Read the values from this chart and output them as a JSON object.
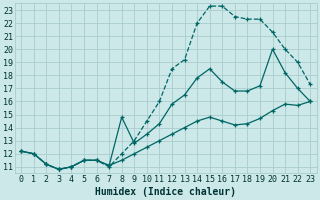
{
  "xlabel": "Humidex (Indice chaleur)",
  "bg_color": "#cce8e8",
  "grid_color": "#aacccc",
  "line_color": "#006666",
  "xlim": [
    -0.5,
    23.5
  ],
  "ylim": [
    10.5,
    23.5
  ],
  "xticks": [
    0,
    1,
    2,
    3,
    4,
    5,
    6,
    7,
    8,
    9,
    10,
    11,
    12,
    13,
    14,
    15,
    16,
    17,
    18,
    19,
    20,
    21,
    22,
    23
  ],
  "yticks": [
    11,
    12,
    13,
    14,
    15,
    16,
    17,
    18,
    19,
    20,
    21,
    22,
    23
  ],
  "line1_x": [
    0,
    1,
    2,
    3,
    4,
    5,
    6,
    7,
    8,
    9,
    10,
    11,
    12,
    13,
    14,
    15,
    16,
    17,
    18,
    19,
    20,
    21,
    22,
    23
  ],
  "line1_y": [
    12.2,
    12.0,
    11.2,
    10.8,
    11.0,
    11.5,
    11.5,
    11.0,
    12.0,
    13.0,
    14.5,
    16.0,
    18.5,
    19.2,
    22.0,
    23.3,
    23.3,
    22.5,
    22.3,
    22.3,
    21.3,
    20.0,
    19.0,
    17.3
  ],
  "line2_x": [
    0,
    1,
    2,
    3,
    4,
    5,
    6,
    7,
    8,
    9,
    10,
    11,
    12,
    13,
    14,
    15,
    16,
    17,
    18,
    19,
    20,
    21,
    22,
    23
  ],
  "line2_y": [
    12.2,
    12.0,
    11.2,
    10.8,
    11.0,
    11.5,
    11.5,
    11.1,
    14.8,
    12.8,
    13.5,
    14.3,
    15.8,
    16.5,
    17.8,
    18.5,
    17.5,
    16.8,
    16.8,
    17.2,
    20.0,
    18.2,
    17.0,
    16.0
  ],
  "line3_x": [
    0,
    1,
    2,
    3,
    4,
    5,
    6,
    7,
    8,
    9,
    10,
    11,
    12,
    13,
    14,
    15,
    16,
    17,
    18,
    19,
    20,
    21,
    22,
    23
  ],
  "line3_y": [
    12.2,
    12.0,
    11.2,
    10.8,
    11.0,
    11.5,
    11.5,
    11.1,
    11.5,
    12.0,
    12.5,
    13.0,
    13.5,
    14.0,
    14.5,
    14.8,
    14.5,
    14.2,
    14.3,
    14.7,
    15.3,
    15.8,
    15.7,
    16.0
  ],
  "font_size_label": 7,
  "font_size_tick": 6
}
